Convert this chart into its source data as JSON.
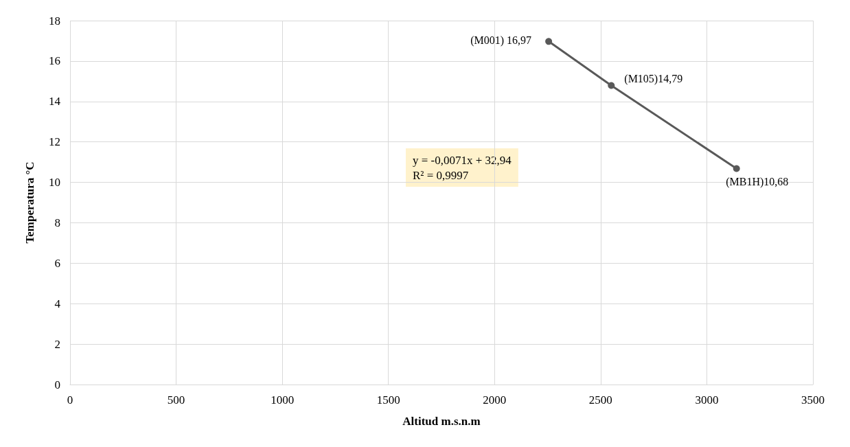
{
  "chart_data": {
    "type": "line",
    "xlabel": "Altitud m.s.n.m",
    "ylabel": "Temperatura °C",
    "x": [
      2255,
      2550,
      3140
    ],
    "series": [
      {
        "color": "#595959",
        "values": [
          16.97,
          14.79,
          10.68
        ],
        "value_labels": [
          "(M001) 16,97",
          "(M105)14,79",
          "(MB1H)10,68"
        ]
      }
    ],
    "xlim": [
      0,
      3500
    ],
    "xticks": [
      0,
      500,
      1000,
      1500,
      2000,
      2500,
      3000,
      3500
    ],
    "ylim": [
      0,
      18
    ],
    "yticks": [
      0,
      2,
      4,
      6,
      8,
      10,
      12,
      14,
      16,
      18
    ],
    "grid": true,
    "marker": "circle",
    "line_style": "solid",
    "annotations": [
      "y = -0,0071x + 32,94",
      "R² = 0,9997"
    ]
  }
}
